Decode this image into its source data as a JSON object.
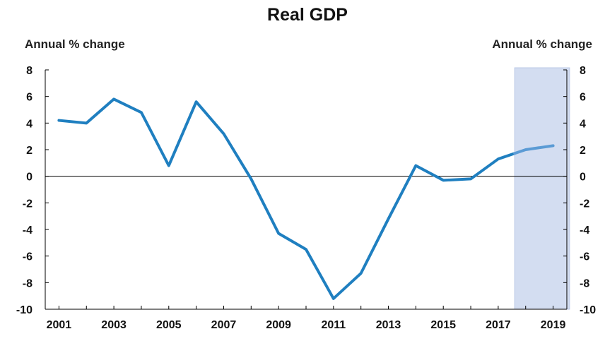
{
  "chart_data": {
    "type": "line",
    "title": "Real GDP",
    "ylabel_left": "Annual % change",
    "ylabel_right": "Annual % change",
    "xlabel": "",
    "x_tick_labels": [
      "2001",
      "2003",
      "2005",
      "2007",
      "2009",
      "2011",
      "2013",
      "2015",
      "2017",
      "2019"
    ],
    "y_tick_labels": [
      "8",
      "6",
      "4",
      "2",
      "0",
      "-2",
      "-4",
      "-6",
      "-8",
      "-10"
    ],
    "xlim": [
      2000.5,
      2019.5
    ],
    "ylim": [
      -10,
      8
    ],
    "grid": false,
    "legend": "none",
    "projection_shade": {
      "from": 2017.6,
      "to": 2019.6,
      "color": "#d3ddf1"
    },
    "colors": {
      "line": "#1f7fc0",
      "projection_line": "#5b9bd5",
      "axis": "#000000"
    },
    "series": [
      {
        "x": [
          2001,
          2002,
          2003,
          2004,
          2005,
          2006,
          2007,
          2008,
          2009,
          2010,
          2011,
          2012,
          2013,
          2014,
          2015,
          2016,
          2017,
          2018,
          2019
        ],
        "values": [
          4.2,
          4.0,
          5.8,
          4.8,
          0.8,
          5.6,
          3.2,
          -0.2,
          -4.3,
          -5.5,
          -9.2,
          -7.3,
          -3.2,
          0.8,
          -0.3,
          -0.2,
          1.3,
          2.0,
          2.3
        ],
        "projection_from": 2017.6
      }
    ]
  }
}
